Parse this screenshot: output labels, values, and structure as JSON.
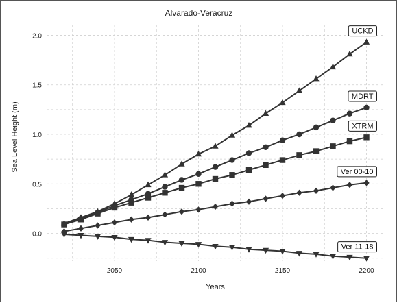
{
  "chart_data": {
    "type": "line",
    "title": "Alvarado-Veracruz",
    "xlabel": "Years",
    "ylabel": "Sea Level Height (m)",
    "xlim": [
      2010,
      2210
    ],
    "ylim": [
      -0.28,
      2.1
    ],
    "x_ticks": [
      2050,
      2100,
      2150,
      2200
    ],
    "x_tick_labels": [
      "2050",
      "2100",
      "2150",
      "2200"
    ],
    "y_ticks": [
      0.0,
      0.5,
      1.0,
      1.5,
      2.0
    ],
    "y_tick_labels": [
      "0.0",
      "0.5",
      "1.0",
      "1.5",
      "2.0"
    ],
    "grid": true,
    "x": [
      2020,
      2030,
      2040,
      2050,
      2060,
      2070,
      2080,
      2090,
      2100,
      2110,
      2120,
      2130,
      2140,
      2150,
      2160,
      2170,
      2180,
      2190,
      2200
    ],
    "series": [
      {
        "name": "UCKD",
        "marker": "triangle-up",
        "values": [
          0.1,
          0.16,
          0.22,
          0.3,
          0.39,
          0.49,
          0.59,
          0.7,
          0.8,
          0.88,
          0.99,
          1.09,
          1.21,
          1.32,
          1.44,
          1.56,
          1.68,
          1.81,
          1.93
        ]
      },
      {
        "name": "MDRT",
        "marker": "circle",
        "values": [
          0.09,
          0.15,
          0.21,
          0.28,
          0.34,
          0.4,
          0.47,
          0.54,
          0.6,
          0.67,
          0.74,
          0.81,
          0.87,
          0.94,
          1.0,
          1.07,
          1.14,
          1.21,
          1.27
        ]
      },
      {
        "name": "XTRM",
        "marker": "square",
        "values": [
          0.09,
          0.14,
          0.2,
          0.26,
          0.31,
          0.36,
          0.41,
          0.46,
          0.5,
          0.55,
          0.59,
          0.64,
          0.69,
          0.74,
          0.79,
          0.83,
          0.88,
          0.93,
          0.97
        ]
      },
      {
        "name": "Ver 00-10",
        "marker": "diamond",
        "values": [
          0.02,
          0.05,
          0.08,
          0.11,
          0.14,
          0.16,
          0.19,
          0.22,
          0.24,
          0.27,
          0.3,
          0.32,
          0.35,
          0.38,
          0.41,
          0.43,
          0.46,
          0.49,
          0.51
        ]
      },
      {
        "name": "Ver 11-18",
        "marker": "triangle-down",
        "values": [
          -0.01,
          -0.02,
          -0.03,
          -0.04,
          -0.06,
          -0.07,
          -0.09,
          -0.1,
          -0.11,
          -0.13,
          -0.14,
          -0.16,
          -0.17,
          -0.18,
          -0.2,
          -0.21,
          -0.23,
          -0.24,
          -0.25
        ]
      }
    ],
    "colors": {
      "line": "#333333",
      "grid": "#cfcfcf",
      "label_border": "#222222"
    }
  }
}
